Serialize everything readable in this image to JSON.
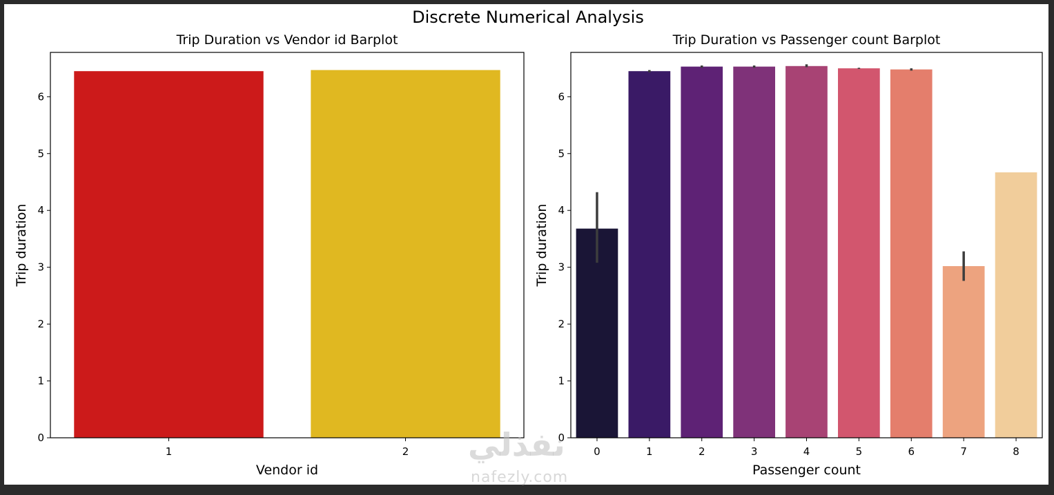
{
  "figure": {
    "suptitle": "Discrete Numerical Analysis"
  },
  "chart_data": [
    {
      "type": "bar",
      "title": "Trip Duration vs Vendor id Barplot",
      "xlabel": "Vendor id",
      "ylabel": "Trip duration",
      "categories": [
        "1",
        "2"
      ],
      "values": [
        6.45,
        6.47
      ],
      "colors": [
        "#cc1a1a",
        "#e0b821"
      ],
      "ylim": [
        0,
        6.78
      ],
      "yticks": [
        0,
        1,
        2,
        3,
        4,
        5,
        6
      ],
      "error_bars": null,
      "grid": false
    },
    {
      "type": "bar",
      "title": "Trip Duration vs Passenger count Barplot",
      "xlabel": "Passenger count",
      "ylabel": "Trip duration",
      "categories": [
        "0",
        "1",
        "2",
        "3",
        "4",
        "5",
        "6",
        "7",
        "8"
      ],
      "values": [
        3.68,
        6.45,
        6.53,
        6.53,
        6.54,
        6.5,
        6.48,
        3.02,
        4.67
      ],
      "error_low": [
        3.08,
        6.43,
        6.51,
        6.51,
        6.52,
        6.49,
        6.46,
        2.76,
        4.67
      ],
      "error_high": [
        4.32,
        6.47,
        6.55,
        6.55,
        6.57,
        6.51,
        6.5,
        3.28,
        4.67
      ],
      "colors": [
        "#1a1536",
        "#3a1a66",
        "#5e2275",
        "#7f3279",
        "#a84374",
        "#d2566e",
        "#e47e6c",
        "#eda37f",
        "#f1cd9b"
      ],
      "ylim": [
        0,
        6.78
      ],
      "yticks": [
        0,
        1,
        2,
        3,
        4,
        5,
        6
      ],
      "grid": false
    }
  ],
  "watermark": {
    "logo_text": "نفذلي",
    "url_text": "nafezly.com"
  }
}
